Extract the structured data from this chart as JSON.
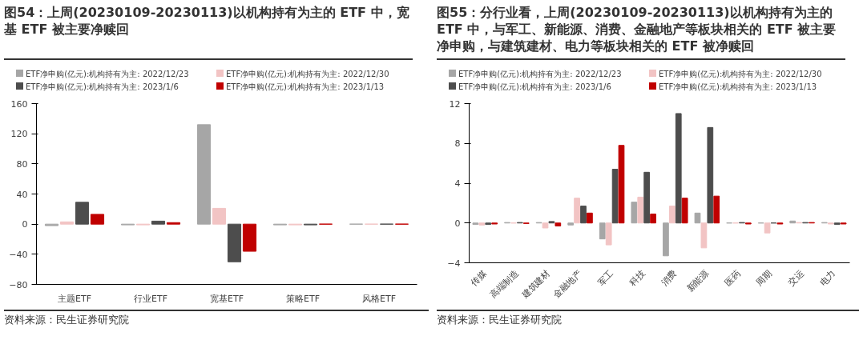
{
  "chart_data": [
    {
      "type": "bar",
      "title": "图54：上周(20230109-20230113)以机构持有为主的 ETF 中，宽基 ETF 被主要净赎回",
      "categories": [
        "主题ETF",
        "行业ETF",
        "宽基ETF",
        "策略ETF",
        "风格ETF"
      ],
      "series": [
        {
          "name": "ETF净申购(亿元):机构持有为主: 2022/12/23",
          "color": "#a6a6a6",
          "values": [
            -2,
            -1,
            132,
            -1,
            0
          ]
        },
        {
          "name": "ETF净申购(亿元):机构持有为主: 2022/12/30",
          "color": "#f2c4c4",
          "values": [
            3,
            -1,
            21,
            -1,
            0
          ]
        },
        {
          "name": "ETF净申购(亿元):机构持有为主: 2023/1/6",
          "color": "#4d4d4d",
          "values": [
            29,
            4,
            -50,
            -1,
            0
          ]
        },
        {
          "name": "ETF净申购(亿元):机构持有为主: 2023/1/13",
          "color": "#c00000",
          "values": [
            13,
            2,
            -36,
            0,
            0
          ]
        }
      ],
      "ylim": [
        -80,
        160
      ],
      "yticks": [
        -80,
        -40,
        0,
        40,
        80,
        120,
        160
      ],
      "grid": false,
      "legend": "top",
      "annotations": [
        "资料来源：民生证券研究院"
      ]
    },
    {
      "type": "bar",
      "title": "图55：分行业看，上周(20230109-20230113)以机构持有为主的 ETF 中，与军工、新能源、消费、金融地产等板块相关的 ETF 被主要净申购，与建筑建材、电力等板块相关的 ETF 被净赎回",
      "categories": [
        "传媒",
        "高端制造",
        "建筑建材",
        "金融地产",
        "军工",
        "科技",
        "消费",
        "新能源",
        "医药",
        "周期",
        "交运",
        "电力"
      ],
      "series": [
        {
          "name": "ETF净申购(亿元):机构持有为主: 2022/12/23",
          "color": "#a6a6a6",
          "values": [
            -0.15,
            0.05,
            0.05,
            -0.2,
            -1.6,
            2.1,
            -3.3,
            1.0,
            0,
            0,
            0.2,
            0.05
          ]
        },
        {
          "name": "ETF净申购(亿元):机构持有为主: 2022/12/30",
          "color": "#f2c4c4",
          "values": [
            -0.2,
            0,
            -0.5,
            2.5,
            -2.2,
            2.6,
            1.7,
            -2.5,
            0,
            -1.0,
            0.05,
            -0.1
          ]
        },
        {
          "name": "ETF净申购(亿元):机构持有为主: 2023/1/6",
          "color": "#4d4d4d",
          "values": [
            -0.15,
            0.05,
            0.15,
            1.7,
            5.4,
            5.1,
            11.0,
            9.6,
            0.05,
            0,
            0.05,
            -0.15
          ]
        },
        {
          "name": "ETF净申购(亿元):机构持有为主: 2023/1/13",
          "color": "#c00000",
          "values": [
            -0.1,
            -0.05,
            -0.3,
            1.0,
            7.8,
            0.9,
            2.5,
            2.7,
            -0.1,
            -0.1,
            0.05,
            -0.1
          ]
        }
      ],
      "ylim": [
        -4,
        12
      ],
      "yticks": [
        -4,
        0,
        4,
        8,
        12
      ],
      "grid": false,
      "legend": "top",
      "annotations": [
        "资料来源：民生证券研究院"
      ]
    }
  ]
}
